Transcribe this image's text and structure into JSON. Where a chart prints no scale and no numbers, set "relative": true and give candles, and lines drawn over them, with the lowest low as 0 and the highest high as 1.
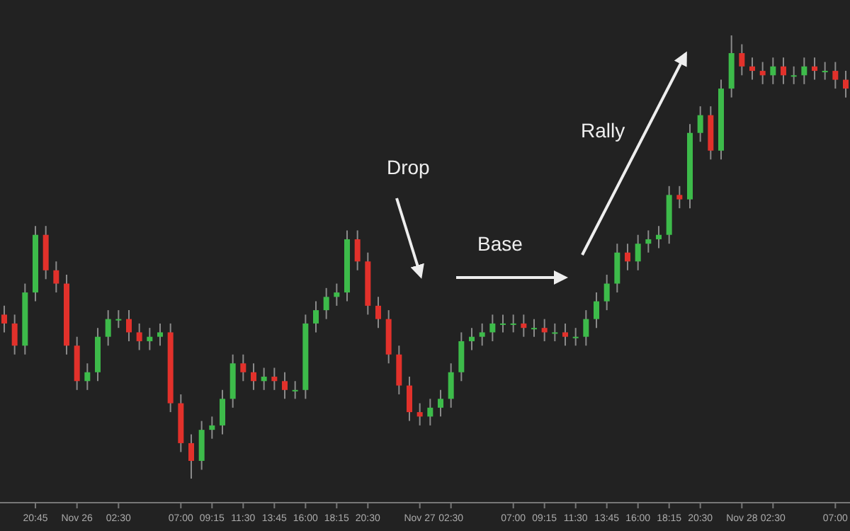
{
  "chart_data": {
    "type": "candlestick",
    "relative": true,
    "categories": [
      null,
      null,
      null,
      "20:45",
      null,
      null,
      null,
      "Nov 26",
      null,
      null,
      null,
      "02:30",
      null,
      null,
      null,
      null,
      null,
      "07:00",
      null,
      null,
      "09:15",
      null,
      null,
      "11:30",
      null,
      null,
      "13:45",
      null,
      null,
      "16:00",
      null,
      null,
      "18:15",
      null,
      null,
      "20:30",
      null,
      null,
      null,
      null,
      "Nov 27",
      null,
      null,
      "02:30",
      null,
      null,
      null,
      null,
      null,
      "07:00",
      null,
      null,
      "09:15",
      null,
      null,
      "11:30",
      null,
      null,
      "13:45",
      null,
      null,
      "16:00",
      null,
      null,
      "18:15",
      null,
      null,
      "20:30",
      null,
      null,
      null,
      "Nov 28",
      null,
      null,
      "02:30",
      null,
      null,
      null,
      null,
      null,
      "07:00",
      null
    ],
    "ohlc": [
      [
        0.37,
        0.39,
        0.33,
        0.35
      ],
      [
        0.35,
        0.37,
        0.28,
        0.3
      ],
      [
        0.3,
        0.44,
        0.28,
        0.42
      ],
      [
        0.42,
        0.57,
        0.4,
        0.55
      ],
      [
        0.55,
        0.57,
        0.45,
        0.47
      ],
      [
        0.47,
        0.49,
        0.42,
        0.44
      ],
      [
        0.44,
        0.46,
        0.28,
        0.3
      ],
      [
        0.3,
        0.32,
        0.2,
        0.22
      ],
      [
        0.22,
        0.26,
        0.2,
        0.24
      ],
      [
        0.24,
        0.34,
        0.22,
        0.32
      ],
      [
        0.32,
        0.38,
        0.3,
        0.36
      ],
      [
        0.36,
        0.38,
        0.34,
        0.36
      ],
      [
        0.36,
        0.38,
        0.31,
        0.33
      ],
      [
        0.33,
        0.35,
        0.29,
        0.31
      ],
      [
        0.31,
        0.34,
        0.29,
        0.32
      ],
      [
        0.32,
        0.35,
        0.3,
        0.33
      ],
      [
        0.33,
        0.35,
        0.15,
        0.17
      ],
      [
        0.17,
        0.19,
        0.06,
        0.08
      ],
      [
        0.08,
        0.1,
        0,
        0.04
      ],
      [
        0.04,
        0.13,
        0.02,
        0.11
      ],
      [
        0.11,
        0.14,
        0.09,
        0.12
      ],
      [
        0.12,
        0.2,
        0.1,
        0.18
      ],
      [
        0.18,
        0.28,
        0.16,
        0.26
      ],
      [
        0.26,
        0.28,
        0.22,
        0.24
      ],
      [
        0.24,
        0.26,
        0.2,
        0.22
      ],
      [
        0.22,
        0.25,
        0.2,
        0.23
      ],
      [
        0.23,
        0.25,
        0.2,
        0.22
      ],
      [
        0.22,
        0.24,
        0.18,
        0.2
      ],
      [
        0.2,
        0.22,
        0.18,
        0.2
      ],
      [
        0.2,
        0.37,
        0.18,
        0.35
      ],
      [
        0.35,
        0.4,
        0.33,
        0.38
      ],
      [
        0.38,
        0.43,
        0.36,
        0.41
      ],
      [
        0.41,
        0.44,
        0.39,
        0.42
      ],
      [
        0.42,
        0.56,
        0.4,
        0.54
      ],
      [
        0.54,
        0.56,
        0.47,
        0.49
      ],
      [
        0.49,
        0.51,
        0.37,
        0.39
      ],
      [
        0.39,
        0.41,
        0.34,
        0.36
      ],
      [
        0.36,
        0.38,
        0.26,
        0.28
      ],
      [
        0.28,
        0.3,
        0.19,
        0.21
      ],
      [
        0.21,
        0.23,
        0.13,
        0.15
      ],
      [
        0.15,
        0.17,
        0.12,
        0.14
      ],
      [
        0.14,
        0.18,
        0.12,
        0.16
      ],
      [
        0.16,
        0.2,
        0.14,
        0.18
      ],
      [
        0.18,
        0.26,
        0.16,
        0.24
      ],
      [
        0.24,
        0.33,
        0.22,
        0.31
      ],
      [
        0.31,
        0.34,
        0.29,
        0.32
      ],
      [
        0.32,
        0.35,
        0.3,
        0.33
      ],
      [
        0.33,
        0.37,
        0.31,
        0.35
      ],
      [
        0.35,
        0.37,
        0.33,
        0.35
      ],
      [
        0.35,
        0.37,
        0.33,
        0.35
      ],
      [
        0.35,
        0.37,
        0.32,
        0.34
      ],
      [
        0.34,
        0.36,
        0.32,
        0.34
      ],
      [
        0.34,
        0.36,
        0.31,
        0.33
      ],
      [
        0.33,
        0.35,
        0.31,
        0.33
      ],
      [
        0.33,
        0.35,
        0.3,
        0.32
      ],
      [
        0.32,
        0.34,
        0.3,
        0.32
      ],
      [
        0.32,
        0.38,
        0.3,
        0.36
      ],
      [
        0.36,
        0.42,
        0.34,
        0.4
      ],
      [
        0.4,
        0.46,
        0.38,
        0.44
      ],
      [
        0.44,
        0.53,
        0.42,
        0.51
      ],
      [
        0.51,
        0.53,
        0.47,
        0.49
      ],
      [
        0.49,
        0.55,
        0.47,
        0.53
      ],
      [
        0.53,
        0.56,
        0.51,
        0.54
      ],
      [
        0.54,
        0.57,
        0.52,
        0.55
      ],
      [
        0.55,
        0.66,
        0.53,
        0.64
      ],
      [
        0.64,
        0.66,
        0.61,
        0.63
      ],
      [
        0.63,
        0.8,
        0.61,
        0.78
      ],
      [
        0.78,
        0.84,
        0.76,
        0.82
      ],
      [
        0.82,
        0.84,
        0.72,
        0.74
      ],
      [
        0.74,
        0.9,
        0.72,
        0.88
      ],
      [
        0.88,
        1,
        0.86,
        0.96
      ],
      [
        0.96,
        0.98,
        0.91,
        0.93
      ],
      [
        0.93,
        0.95,
        0.9,
        0.92
      ],
      [
        0.92,
        0.94,
        0.89,
        0.91
      ],
      [
        0.91,
        0.95,
        0.89,
        0.93
      ],
      [
        0.93,
        0.95,
        0.89,
        0.91
      ],
      [
        0.91,
        0.93,
        0.89,
        0.91
      ],
      [
        0.91,
        0.95,
        0.89,
        0.93
      ],
      [
        0.93,
        0.95,
        0.9,
        0.92
      ],
      [
        0.92,
        0.94,
        0.9,
        0.92
      ],
      [
        0.92,
        0.94,
        0.88,
        0.9
      ],
      [
        0.9,
        0.92,
        0.86,
        0.88
      ]
    ],
    "annotations": [
      "Drop",
      "Base",
      "Rally"
    ]
  }
}
